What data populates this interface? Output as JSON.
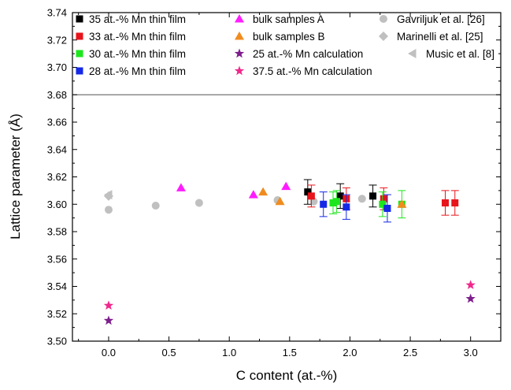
{
  "chart_data": {
    "type": "scatter",
    "xlabel": "C content (at.-%)",
    "ylabel": "Lattice parameter (Å)",
    "xlim": [
      -0.3,
      3.25
    ],
    "ylim": [
      3.5,
      3.74
    ],
    "x_ticks": [
      "0.0",
      "0.5",
      "1.0",
      "1.5",
      "2.0",
      "2.5",
      "3.0"
    ],
    "y_ticks": [
      "3.50",
      "3.52",
      "3.54",
      "3.56",
      "3.58",
      "3.60",
      "3.62",
      "3.64",
      "3.66",
      "3.68",
      "3.70",
      "3.72",
      "3.74"
    ],
    "legend_separator_y": 3.68,
    "legend_placement": "top",
    "grid": false,
    "series": [
      {
        "name": "35 at.-% Mn thin film",
        "marker": "square",
        "color": "#000000",
        "points": [
          [
            1.65,
            3.609,
            0.009
          ],
          [
            1.92,
            3.606,
            0.009
          ],
          [
            2.19,
            3.606,
            0.008
          ]
        ]
      },
      {
        "name": "33 at.-% Mn thin film",
        "marker": "square",
        "color": "#e8141b",
        "points": [
          [
            1.68,
            3.606,
            0.008
          ],
          [
            1.97,
            3.604,
            0.008
          ],
          [
            2.28,
            3.604,
            0.008
          ],
          [
            2.79,
            3.601,
            0.009
          ],
          [
            2.87,
            3.601,
            0.009
          ]
        ]
      },
      {
        "name": "30 at.-% Mn thin film",
        "marker": "square",
        "color": "#1ee61e",
        "points": [
          [
            1.86,
            3.601,
            0.008
          ],
          [
            1.89,
            3.602,
            0.008
          ],
          [
            2.27,
            3.6,
            0.009
          ],
          [
            2.43,
            3.6,
            0.01
          ]
        ]
      },
      {
        "name": "28 at.-% Mn thin film",
        "marker": "square",
        "color": "#1428e6",
        "points": [
          [
            1.78,
            3.6,
            0.009
          ],
          [
            1.97,
            3.598,
            0.009
          ],
          [
            2.31,
            3.597,
            0.01
          ]
        ]
      },
      {
        "name": "bulk samples A",
        "marker": "triangle-up",
        "color": "#ff1cff",
        "points": [
          [
            0.6,
            3.612
          ],
          [
            1.2,
            3.607
          ],
          [
            1.47,
            3.613
          ]
        ]
      },
      {
        "name": "bulk samples B",
        "marker": "triangle-up",
        "color": "#f08c1e",
        "points": [
          [
            1.28,
            3.609
          ],
          [
            1.42,
            3.602
          ],
          [
            2.43,
            3.6
          ]
        ]
      },
      {
        "name": "25 at.-% Mn calculation",
        "marker": "star",
        "color": "#7d1e8c",
        "points": [
          [
            0.0,
            3.515
          ],
          [
            3.0,
            3.531
          ]
        ]
      },
      {
        "name": "37.5 at.-% Mn calculation",
        "marker": "star",
        "color": "#f0288c",
        "points": [
          [
            0.0,
            3.526
          ],
          [
            3.0,
            3.541
          ]
        ]
      },
      {
        "name": "Gavriljuk et al. [26]",
        "marker": "circle",
        "color": "#c0c0c0",
        "points": [
          [
            0.0,
            3.596
          ],
          [
            0.39,
            3.599
          ],
          [
            0.75,
            3.601
          ],
          [
            1.4,
            3.603
          ],
          [
            1.7,
            3.602
          ],
          [
            2.1,
            3.604
          ]
        ]
      },
      {
        "name": "Marinelli et al. [25]",
        "marker": "diamond",
        "color": "#c0c0c0",
        "points": [
          [
            0.0,
            3.606
          ]
        ]
      },
      {
        "name": "Music et al. [8]",
        "marker": "triangle-left",
        "color": "#c0c0c0",
        "points": [
          [
            0.0,
            3.607
          ]
        ]
      }
    ]
  }
}
